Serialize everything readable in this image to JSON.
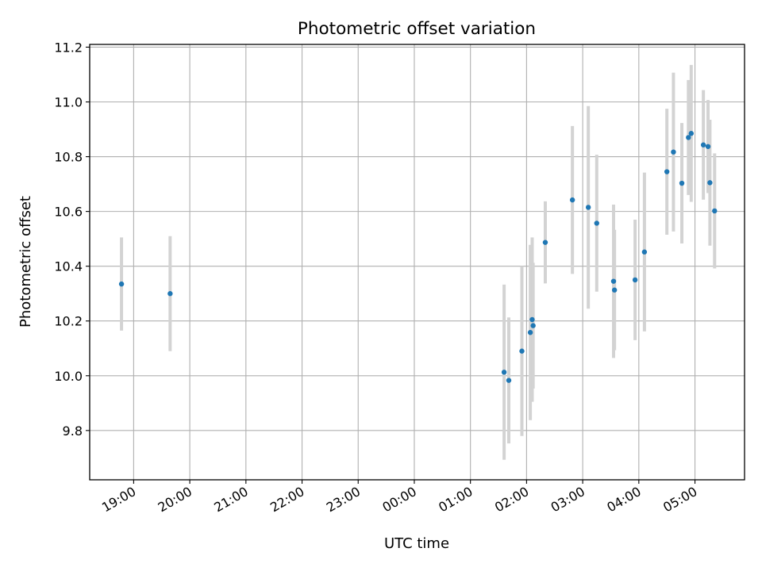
{
  "chart_data": {
    "type": "scatter",
    "title": "Photometric offset variation",
    "xlabel": "UTC time",
    "ylabel": "Photometric offset",
    "x_unit": "UTC clock time (HH:MM), crossing midnight",
    "x_ticks": [
      "19:00",
      "20:00",
      "21:00",
      "22:00",
      "23:00",
      "00:00",
      "01:00",
      "02:00",
      "03:00",
      "04:00",
      "05:00"
    ],
    "y_ticks": [
      "9.8",
      "10.0",
      "10.2",
      "10.4",
      "10.6",
      "10.8",
      "11.0",
      "11.2"
    ],
    "xlim": [
      "18:13",
      "05:53"
    ],
    "ylim": [
      9.62,
      11.21
    ],
    "grid": true,
    "marker_color": "#1f77b4",
    "errorbar_color": "#d3d3d3",
    "points": [
      {
        "x": "18:47",
        "y": 10.335,
        "err": 0.17
      },
      {
        "x": "19:39",
        "y": 10.3,
        "err": 0.21
      },
      {
        "x": "01:36",
        "y": 10.013,
        "err": 0.32
      },
      {
        "x": "01:41",
        "y": 9.983,
        "err": 0.23
      },
      {
        "x": "01:55",
        "y": 10.09,
        "err": 0.31
      },
      {
        "x": "02:04",
        "y": 10.158,
        "err": 0.32
      },
      {
        "x": "02:06",
        "y": 10.205,
        "err": 0.3
      },
      {
        "x": "02:07",
        "y": 10.183,
        "err": 0.23
      },
      {
        "x": "02:20",
        "y": 10.487,
        "err": 0.15
      },
      {
        "x": "02:49",
        "y": 10.642,
        "err": 0.27
      },
      {
        "x": "03:06",
        "y": 10.615,
        "err": 0.37
      },
      {
        "x": "03:15",
        "y": 10.557,
        "err": 0.25
      },
      {
        "x": "03:33",
        "y": 10.345,
        "err": 0.28
      },
      {
        "x": "03:34",
        "y": 10.313,
        "err": 0.22
      },
      {
        "x": "03:56",
        "y": 10.35,
        "err": 0.22
      },
      {
        "x": "04:06",
        "y": 10.452,
        "err": 0.29
      },
      {
        "x": "04:30",
        "y": 10.745,
        "err": 0.23
      },
      {
        "x": "04:37",
        "y": 10.817,
        "err": 0.29
      },
      {
        "x": "04:46",
        "y": 10.703,
        "err": 0.22
      },
      {
        "x": "04:53",
        "y": 10.87,
        "err": 0.21
      },
      {
        "x": "04:56",
        "y": 10.885,
        "err": 0.25
      },
      {
        "x": "05:09",
        "y": 10.843,
        "err": 0.2
      },
      {
        "x": "05:14",
        "y": 10.837,
        "err": 0.17
      },
      {
        "x": "05:16",
        "y": 10.705,
        "err": 0.23
      },
      {
        "x": "05:21",
        "y": 10.602,
        "err": 0.21
      }
    ]
  }
}
